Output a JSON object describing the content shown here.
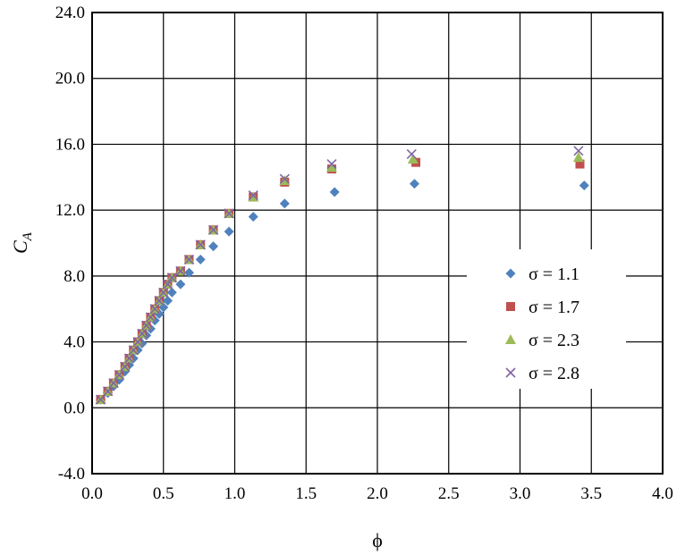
{
  "chart_data": {
    "type": "scatter",
    "title": "",
    "xlabel": "ϕ",
    "ylabel": "C",
    "ylabel_sub": "A",
    "xlim": [
      0.0,
      4.0
    ],
    "ylim": [
      -4.0,
      24.0
    ],
    "x_ticks": [
      "0.0",
      "0.5",
      "1.0",
      "1.5",
      "2.0",
      "2.5",
      "3.0",
      "3.5",
      "4.0"
    ],
    "y_ticks": [
      "-4.0",
      "0.0",
      "4.0",
      "8.0",
      "12.0",
      "16.0",
      "20.0",
      "24.0"
    ],
    "grid": true,
    "legend_position": "right",
    "series": [
      {
        "name": "σ = 1.1",
        "marker": "diamond",
        "color": "#4f81bd",
        "points": [
          [
            0.06,
            0.5
          ],
          [
            0.11,
            0.9
          ],
          [
            0.15,
            1.3
          ],
          [
            0.19,
            1.7
          ],
          [
            0.23,
            2.2
          ],
          [
            0.26,
            2.6
          ],
          [
            0.29,
            3.0
          ],
          [
            0.32,
            3.5
          ],
          [
            0.35,
            3.9
          ],
          [
            0.38,
            4.4
          ],
          [
            0.41,
            4.8
          ],
          [
            0.44,
            5.3
          ],
          [
            0.47,
            5.7
          ],
          [
            0.5,
            6.1
          ],
          [
            0.53,
            6.5
          ],
          [
            0.56,
            7.0
          ],
          [
            0.62,
            7.5
          ],
          [
            0.68,
            8.2
          ],
          [
            0.76,
            9.0
          ],
          [
            0.85,
            9.8
          ],
          [
            0.96,
            10.7
          ],
          [
            1.13,
            11.6
          ],
          [
            1.35,
            12.4
          ],
          [
            1.7,
            13.1
          ],
          [
            2.26,
            13.6
          ],
          [
            3.45,
            13.5
          ]
        ]
      },
      {
        "name": "σ = 1.7",
        "marker": "square",
        "color": "#c0504d",
        "points": [
          [
            0.06,
            0.5
          ],
          [
            0.11,
            1.0
          ],
          [
            0.15,
            1.5
          ],
          [
            0.19,
            2.0
          ],
          [
            0.23,
            2.5
          ],
          [
            0.26,
            3.0
          ],
          [
            0.29,
            3.5
          ],
          [
            0.32,
            4.0
          ],
          [
            0.35,
            4.5
          ],
          [
            0.38,
            5.0
          ],
          [
            0.41,
            5.5
          ],
          [
            0.44,
            6.0
          ],
          [
            0.47,
            6.5
          ],
          [
            0.5,
            7.0
          ],
          [
            0.53,
            7.5
          ],
          [
            0.56,
            7.9
          ],
          [
            0.62,
            8.3
          ],
          [
            0.68,
            9.0
          ],
          [
            0.76,
            9.9
          ],
          [
            0.85,
            10.8
          ],
          [
            0.96,
            11.8
          ],
          [
            1.13,
            12.8
          ],
          [
            1.35,
            13.7
          ],
          [
            1.68,
            14.5
          ],
          [
            2.27,
            14.9
          ],
          [
            3.42,
            14.8
          ]
        ]
      },
      {
        "name": "σ = 2.3",
        "marker": "triangle",
        "color": "#9bbb59",
        "points": [
          [
            0.06,
            0.5
          ],
          [
            0.11,
            1.0
          ],
          [
            0.15,
            1.5
          ],
          [
            0.19,
            2.0
          ],
          [
            0.23,
            2.5
          ],
          [
            0.26,
            3.0
          ],
          [
            0.29,
            3.5
          ],
          [
            0.32,
            4.0
          ],
          [
            0.35,
            4.5
          ],
          [
            0.38,
            5.0
          ],
          [
            0.41,
            5.5
          ],
          [
            0.44,
            6.0
          ],
          [
            0.47,
            6.5
          ],
          [
            0.5,
            7.0
          ],
          [
            0.53,
            7.5
          ],
          [
            0.56,
            7.9
          ],
          [
            0.62,
            8.3
          ],
          [
            0.68,
            9.0
          ],
          [
            0.76,
            9.9
          ],
          [
            0.85,
            10.8
          ],
          [
            0.96,
            11.8
          ],
          [
            1.13,
            12.8
          ],
          [
            1.35,
            13.8
          ],
          [
            1.68,
            14.6
          ],
          [
            2.25,
            15.1
          ],
          [
            3.41,
            15.2
          ]
        ]
      },
      {
        "name": "σ = 2.8",
        "marker": "x",
        "color": "#8064a2",
        "points": [
          [
            0.06,
            0.5
          ],
          [
            0.11,
            1.0
          ],
          [
            0.15,
            1.5
          ],
          [
            0.19,
            2.0
          ],
          [
            0.23,
            2.5
          ],
          [
            0.26,
            3.0
          ],
          [
            0.29,
            3.5
          ],
          [
            0.32,
            4.0
          ],
          [
            0.35,
            4.5
          ],
          [
            0.38,
            5.0
          ],
          [
            0.41,
            5.5
          ],
          [
            0.44,
            6.0
          ],
          [
            0.47,
            6.5
          ],
          [
            0.5,
            7.0
          ],
          [
            0.53,
            7.5
          ],
          [
            0.56,
            7.9
          ],
          [
            0.62,
            8.3
          ],
          [
            0.68,
            9.0
          ],
          [
            0.76,
            9.9
          ],
          [
            0.85,
            10.8
          ],
          [
            0.96,
            11.8
          ],
          [
            1.13,
            12.9
          ],
          [
            1.35,
            13.9
          ],
          [
            1.68,
            14.8
          ],
          [
            2.24,
            15.4
          ],
          [
            3.41,
            15.6
          ]
        ]
      }
    ]
  }
}
